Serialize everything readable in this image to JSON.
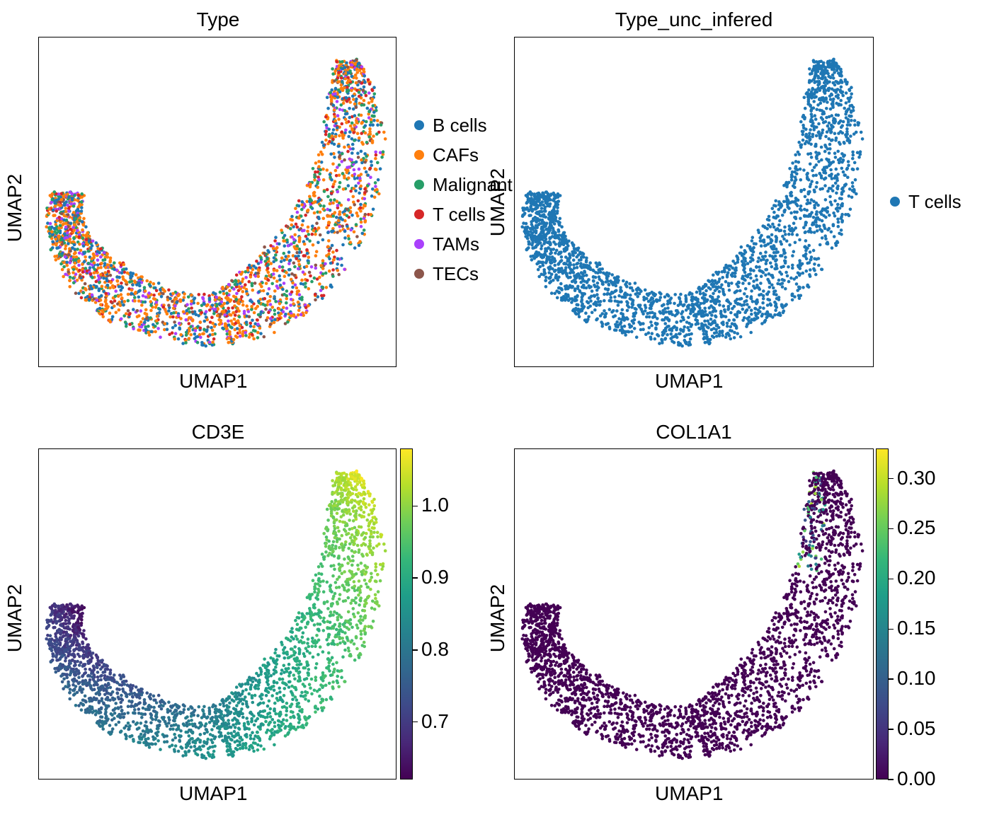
{
  "panels": [
    {
      "title": "Type",
      "xlabel": "UMAP1",
      "ylabel": "UMAP2",
      "legend": [
        {
          "label": "B cells",
          "color": "#1f77b4"
        },
        {
          "label": "CAFs",
          "color": "#ff7f0e"
        },
        {
          "label": "Malignant",
          "color": "#279e68"
        },
        {
          "label": "T cells",
          "color": "#d62728"
        },
        {
          "label": "TAMs",
          "color": "#aa40fc"
        },
        {
          "label": "TECs",
          "color": "#8c564b"
        }
      ]
    },
    {
      "title": "Type_unc_infered",
      "xlabel": "UMAP1",
      "ylabel": "UMAP2",
      "legend": [
        {
          "label": "T cells",
          "color": "#1f77b4"
        }
      ]
    },
    {
      "title": "CD3E",
      "xlabel": "UMAP1",
      "ylabel": "UMAP2",
      "colorbar": {
        "ticks": [
          "0.7",
          "0.8",
          "0.9",
          "1.0"
        ]
      }
    },
    {
      "title": "COL1A1",
      "xlabel": "UMAP1",
      "ylabel": "UMAP2",
      "colorbar": {
        "ticks": [
          "0.00",
          "0.05",
          "0.10",
          "0.15",
          "0.20",
          "0.25",
          "0.30"
        ]
      }
    }
  ],
  "chart_data": [
    {
      "type": "scatter",
      "title": "Type",
      "xlabel": "UMAP1",
      "ylabel": "UMAP2",
      "color_by": "categorical",
      "categories": [
        "B cells",
        "CAFs",
        "Malignant",
        "T cells",
        "TAMs",
        "TECs"
      ],
      "category_colors": [
        "#1f77b4",
        "#ff7f0e",
        "#279e68",
        "#d62728",
        "#aa40fc",
        "#8c564b"
      ],
      "legend_position": "right",
      "grid": false
    },
    {
      "type": "scatter",
      "title": "Type_unc_infered",
      "xlabel": "UMAP1",
      "ylabel": "UMAP2",
      "color_by": "categorical",
      "categories": [
        "T cells"
      ],
      "category_colors": [
        "#1f77b4"
      ],
      "legend_position": "right",
      "grid": false
    },
    {
      "type": "scatter",
      "title": "CD3E",
      "xlabel": "UMAP1",
      "ylabel": "UMAP2",
      "color_by": "continuous",
      "colormap": "viridis",
      "colorbar_range": [
        0.62,
        1.08
      ],
      "colorbar_ticks": [
        0.7,
        0.8,
        0.9,
        1.0
      ],
      "grid": false
    },
    {
      "type": "scatter",
      "title": "COL1A1",
      "xlabel": "UMAP1",
      "ylabel": "UMAP2",
      "color_by": "continuous",
      "colormap": "viridis",
      "colorbar_range": [
        0.0,
        0.33
      ],
      "colorbar_ticks": [
        0.0,
        0.05,
        0.1,
        0.15,
        0.2,
        0.25,
        0.3
      ],
      "grid": false
    }
  ]
}
